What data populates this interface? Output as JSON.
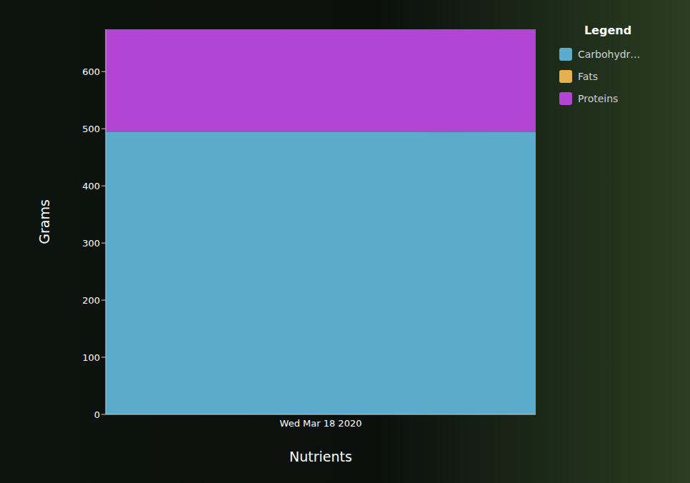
{
  "chart_data": {
    "type": "bar",
    "x_label": "Nutrients",
    "y_label": "Grams",
    "legend_title": "Legend",
    "categories": [
      "Wed Mar 18 2020"
    ],
    "series": [
      {
        "name": "Carbohydr…",
        "color": "#5aabcc",
        "values": [
          495
        ]
      },
      {
        "name": "Fats",
        "color": "#e5b050",
        "values": [
          0
        ]
      },
      {
        "name": "Proteins",
        "color": "#b345d4",
        "values": [
          179
        ]
      }
    ],
    "ylim": [
      0,
      674
    ],
    "yticks": [
      0,
      100,
      200,
      300,
      400,
      500,
      600
    ],
    "stacked": true,
    "legend": "right",
    "grid": false
  }
}
